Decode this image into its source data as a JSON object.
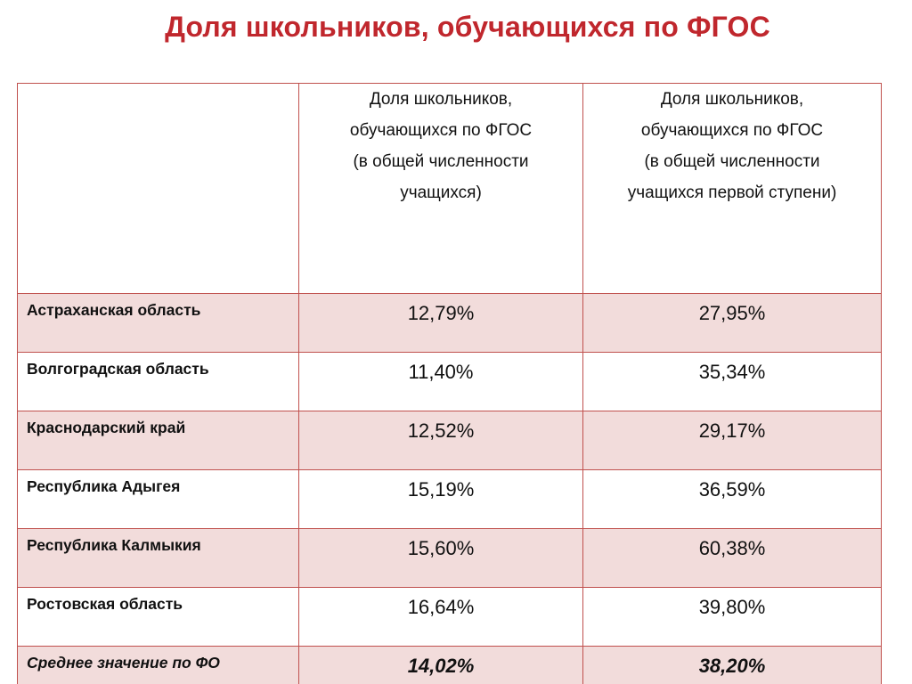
{
  "title": "Доля школьников, обучающихся по ФГОС",
  "table": {
    "headers": [
      "",
      "Доля школьников,\nобучающихся по ФГОС\n(в общей численности\nучащихся)",
      "Доля школьников,\nобучающихся по ФГОС\n(в общей численности\nучащихся первой ступени)"
    ],
    "rows": [
      {
        "region": "Астраханская область",
        "total": "12,79%",
        "first_stage": "27,95%"
      },
      {
        "region": "Волгоградская область",
        "total": "11,40%",
        "first_stage": "35,34%"
      },
      {
        "region": "Краснодарский край",
        "total": "12,52%",
        "first_stage": "29,17%"
      },
      {
        "region": "Республика Адыгея",
        "total": "15,19%",
        "first_stage": "36,59%"
      },
      {
        "region": "Республика Калмыкия",
        "total": "15,60%",
        "first_stage": "60,38%"
      },
      {
        "region": "Ростовская область",
        "total": "16,64%",
        "first_stage": "39,80%"
      },
      {
        "region": "Среднее значение по ФО",
        "total": "14,02%",
        "first_stage": "38,20%"
      }
    ]
  },
  "colors": {
    "title": "#c0272d",
    "border": "#c0504d",
    "row_shade": "#f2dcdb"
  }
}
